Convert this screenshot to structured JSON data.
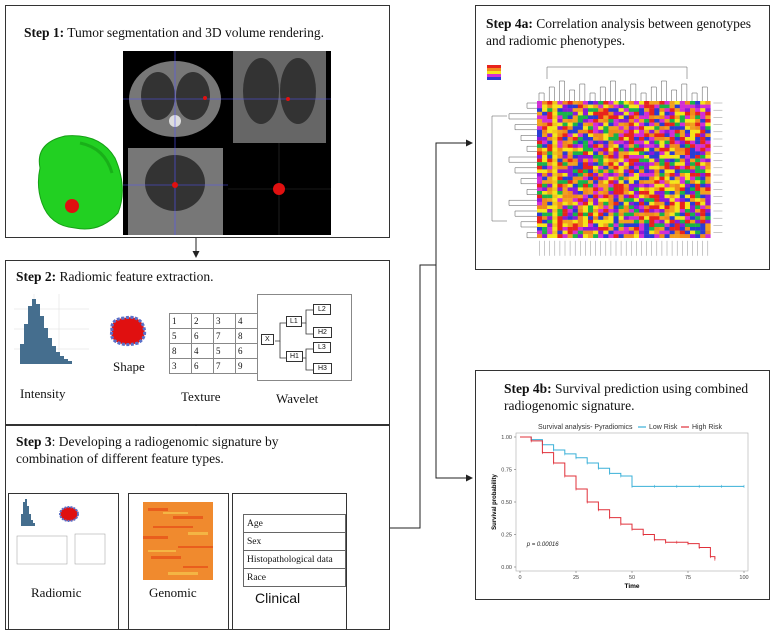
{
  "step1": {
    "num": "Step 1:",
    "text": " Tumor segmentation and 3D volume rendering."
  },
  "step2": {
    "num": "Step 2:",
    "text": " Radiomic feature extraction.",
    "labels": {
      "intensity": "Intensity",
      "shape": "Shape",
      "texture": "Texture",
      "wavelet": "Wavelet"
    },
    "texture_grid": [
      [
        "1",
        "2",
        "3",
        "4"
      ],
      [
        "5",
        "6",
        "7",
        "8"
      ],
      [
        "8",
        "4",
        "5",
        "6"
      ],
      [
        "3",
        "6",
        "7",
        "9"
      ]
    ],
    "wavelet_nodes": {
      "root": "X",
      "l1": "L1",
      "h1": "H1",
      "l2": "L2",
      "h2": "H2",
      "l3": "L3",
      "h3": "H3"
    }
  },
  "step3": {
    "num": "Step 3",
    "text": ": Developing a radiogenomic signature  by combination of different feature types.",
    "labels": {
      "radiomic": "Radiomic",
      "genomic": "Genomic",
      "clinical": "Clinical"
    },
    "clinical_items": [
      "Age",
      "Sex",
      "Histopathological data",
      "Race"
    ]
  },
  "step4a": {
    "num": "Step 4a:",
    "text": " Correlation analysis between genotypes and radiomic phenotypes."
  },
  "step4b": {
    "num": "Step 4b:",
    "text": " Survival prediction using combined radiogenomic signature.",
    "legend_title": "Survival analysis- Pyradiomics",
    "legend_low": "Low Risk",
    "legend_high": "High Risk",
    "ylabel": "Survival probability",
    "xlabel": "Time",
    "pvalue": "p = 0.00016",
    "yticks": [
      "1.00",
      "0.75",
      "0.50",
      "0.25",
      "0.00"
    ],
    "xticks": [
      "0",
      "25",
      "50",
      "75",
      "100"
    ]
  },
  "colors": {
    "low": "#3ab0d8",
    "high": "#e0303a",
    "tumor": "#e01010",
    "lung": "#22d022"
  },
  "chart_data": {
    "type": "line",
    "title": "Survival analysis- Pyradiomics",
    "xlabel": "Time",
    "ylabel": "Survival probability",
    "xlim": [
      0,
      100
    ],
    "ylim": [
      0,
      1
    ],
    "series": [
      {
        "name": "Low Risk",
        "x": [
          0,
          5,
          10,
          15,
          20,
          25,
          30,
          35,
          40,
          45,
          50,
          60,
          70,
          80,
          90,
          100
        ],
        "y": [
          1.0,
          0.98,
          0.94,
          0.9,
          0.87,
          0.84,
          0.8,
          0.76,
          0.72,
          0.7,
          0.62,
          0.62,
          0.62,
          0.62,
          0.62,
          0.62
        ]
      },
      {
        "name": "High Risk",
        "x": [
          0,
          5,
          10,
          15,
          20,
          25,
          30,
          35,
          40,
          45,
          50,
          55,
          60,
          65,
          70,
          75,
          80,
          85,
          87
        ],
        "y": [
          1.0,
          0.97,
          0.88,
          0.8,
          0.7,
          0.6,
          0.5,
          0.44,
          0.38,
          0.33,
          0.29,
          0.25,
          0.21,
          0.19,
          0.19,
          0.18,
          0.15,
          0.08,
          0.06
        ]
      }
    ]
  }
}
